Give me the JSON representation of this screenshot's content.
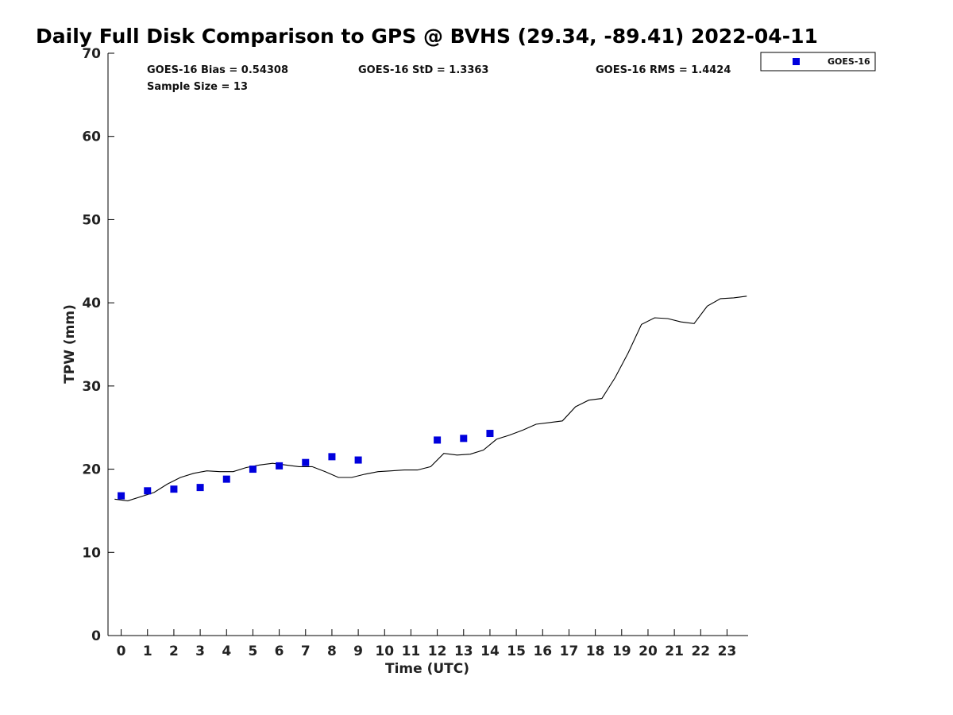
{
  "chart_data": {
    "type": "line",
    "title": "Daily Full Disk Comparison to GPS @ BVHS (29.34, -89.41) 2022-04-11",
    "xlabel": "Time (UTC)",
    "ylabel": "TPW (mm)",
    "xlim": [
      -0.5,
      23.8
    ],
    "ylim": [
      0,
      70
    ],
    "x_ticks": [
      0,
      1,
      2,
      3,
      4,
      5,
      6,
      7,
      8,
      9,
      10,
      11,
      12,
      13,
      14,
      15,
      16,
      17,
      18,
      19,
      20,
      21,
      22,
      23
    ],
    "y_ticks": [
      0,
      10,
      20,
      30,
      40,
      50,
      60,
      70
    ],
    "grid": false,
    "legend_position": "top-right",
    "colors": {
      "goes16": "#0000dd",
      "gps": "#000000"
    },
    "stats": {
      "bias": "GOES-16 Bias = 0.54308",
      "std": "GOES-16 StD = 1.3363",
      "rms": "GOES-16 RMS = 1.4424",
      "sample_size": "Sample Size = 13"
    },
    "series": [
      {
        "name": "GOES-16",
        "style": "square-markers",
        "x": [
          0,
          1,
          2,
          3,
          4,
          5,
          6,
          7,
          8,
          9,
          12,
          13,
          14
        ],
        "y": [
          16.8,
          17.4,
          17.6,
          17.8,
          18.8,
          20.0,
          20.4,
          20.8,
          21.5,
          21.1,
          23.5,
          23.7,
          24.3
        ]
      },
      {
        "style": "line",
        "x": [
          -0.25,
          0.25,
          1.25,
          1.75,
          2.25,
          2.75,
          3.25,
          3.75,
          4.25,
          4.75,
          5.25,
          5.75,
          6.25,
          6.75,
          7.25,
          7.75,
          8.25,
          8.75,
          9.25,
          9.75,
          10.25,
          10.75,
          11.25,
          11.75,
          12.25,
          12.75,
          13.25,
          13.75,
          14.25,
          14.75,
          15.25,
          15.75,
          16.25,
          16.75,
          17.25,
          17.75,
          18.25,
          18.75,
          19.25,
          19.75,
          20.25,
          20.75,
          21.25,
          21.75,
          22.25,
          22.75,
          23.25,
          23.75
        ],
        "y": [
          16.4,
          16.2,
          17.2,
          18.2,
          19.0,
          19.5,
          19.8,
          19.7,
          19.7,
          20.2,
          20.5,
          20.7,
          20.5,
          20.3,
          20.3,
          19.7,
          19.0,
          19.0,
          19.4,
          19.7,
          19.8,
          19.9,
          19.9,
          20.3,
          21.9,
          21.7,
          21.8,
          22.3,
          23.6,
          24.1,
          24.7,
          25.4,
          25.6,
          25.8,
          27.5,
          28.3,
          28.5,
          31.0,
          34.0,
          37.4,
          38.2,
          38.1,
          37.7,
          37.5,
          39.6,
          40.5,
          40.6,
          40.8
        ]
      }
    ]
  }
}
